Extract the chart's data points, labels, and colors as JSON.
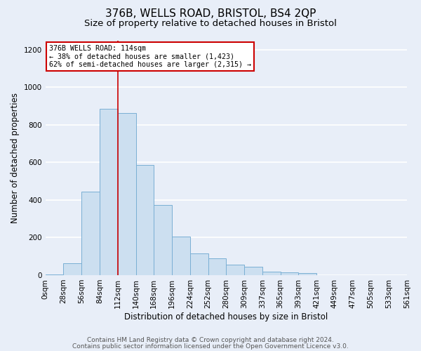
{
  "title": "376B, WELLS ROAD, BRISTOL, BS4 2QP",
  "subtitle": "Size of property relative to detached houses in Bristol",
  "xlabel": "Distribution of detached houses by size in Bristol",
  "ylabel": "Number of detached properties",
  "bin_labels": [
    "0sqm",
    "28sqm",
    "56sqm",
    "84sqm",
    "112sqm",
    "140sqm",
    "168sqm",
    "196sqm",
    "224sqm",
    "252sqm",
    "280sqm",
    "309sqm",
    "337sqm",
    "365sqm",
    "393sqm",
    "421sqm",
    "449sqm",
    "477sqm",
    "505sqm",
    "533sqm",
    "561sqm"
  ],
  "bar_values": [
    5,
    65,
    445,
    885,
    865,
    585,
    375,
    205,
    115,
    90,
    55,
    45,
    20,
    15,
    10,
    0,
    0,
    0,
    0,
    0
  ],
  "bar_color": "#ccdff0",
  "bar_edge_color": "#7aafd4",
  "annotation_box_text": "376B WELLS ROAD: 114sqm\n← 38% of detached houses are smaller (1,423)\n62% of semi-detached houses are larger (2,315) →",
  "annotation_box_color": "#ffffff",
  "annotation_box_edge_color": "#cc0000",
  "vline_color": "#cc0000",
  "ylim": [
    0,
    1250
  ],
  "yticks": [
    0,
    200,
    400,
    600,
    800,
    1000,
    1200
  ],
  "footer_line1": "Contains HM Land Registry data © Crown copyright and database right 2024.",
  "footer_line2": "Contains public sector information licensed under the Open Government Licence v3.0.",
  "bg_color": "#e8eef8",
  "plot_bg_color": "#e8eef8",
  "grid_color": "#ffffff",
  "title_fontsize": 11,
  "subtitle_fontsize": 9.5,
  "axis_label_fontsize": 8.5,
  "tick_fontsize": 7.5,
  "footer_fontsize": 6.5,
  "vline_bin_index": 4
}
